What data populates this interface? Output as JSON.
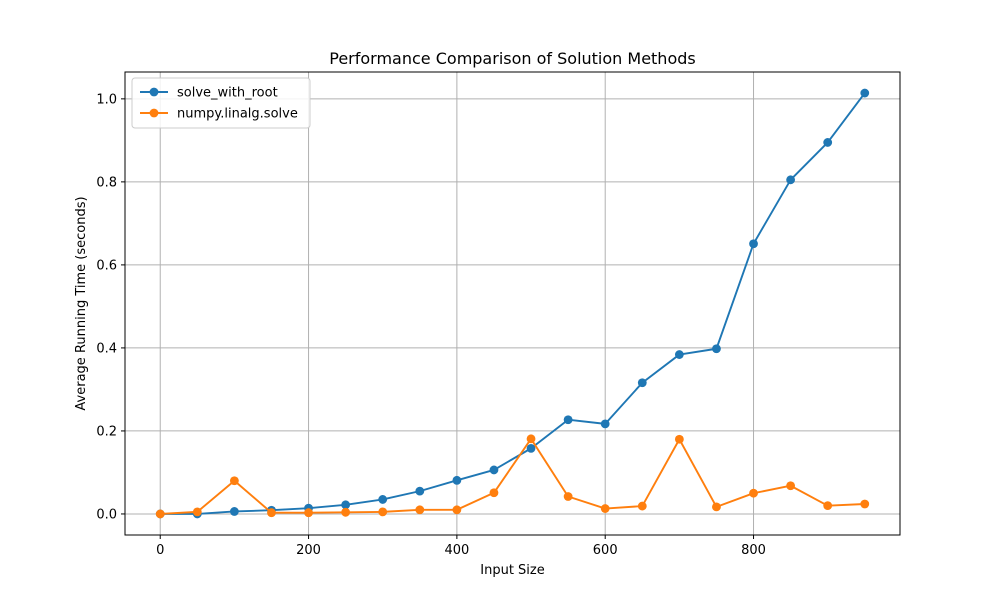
{
  "chart_data": {
    "type": "line",
    "title": "Performance Comparison of Solution Methods",
    "xlabel": "Input Size",
    "ylabel": "Average Running Time (seconds)",
    "xlim": [
      -47.5,
      997.5
    ],
    "ylim": [
      -0.0507,
      1.0647
    ],
    "xticks": [
      0,
      200,
      400,
      600,
      800
    ],
    "yticks": [
      0.0,
      0.2,
      0.4,
      0.6,
      0.8,
      1.0
    ],
    "xtick_labels": [
      "0",
      "200",
      "400",
      "600",
      "800"
    ],
    "ytick_labels": [
      "0.0",
      "0.2",
      "0.4",
      "0.6",
      "0.8",
      "1.0"
    ],
    "grid": true,
    "legend_position": "upper-left",
    "x": [
      0,
      50,
      100,
      150,
      200,
      250,
      300,
      350,
      400,
      450,
      500,
      550,
      600,
      650,
      700,
      750,
      800,
      850,
      900,
      950
    ],
    "series": [
      {
        "name": "solve_with_root",
        "color": "#1f77b4",
        "values": [
          0.0,
          0.0,
          0.006,
          0.009,
          0.014,
          0.022,
          0.035,
          0.055,
          0.081,
          0.106,
          0.158,
          0.227,
          0.217,
          0.316,
          0.384,
          0.398,
          0.651,
          0.805,
          0.895,
          1.014
        ]
      },
      {
        "name": "numpy.linalg.solve",
        "color": "#ff7f0e",
        "values": [
          0.0,
          0.005,
          0.08,
          0.003,
          0.003,
          0.004,
          0.005,
          0.01,
          0.01,
          0.051,
          0.181,
          0.042,
          0.013,
          0.019,
          0.18,
          0.017,
          0.05,
          0.068,
          0.02,
          0.024
        ]
      }
    ]
  }
}
